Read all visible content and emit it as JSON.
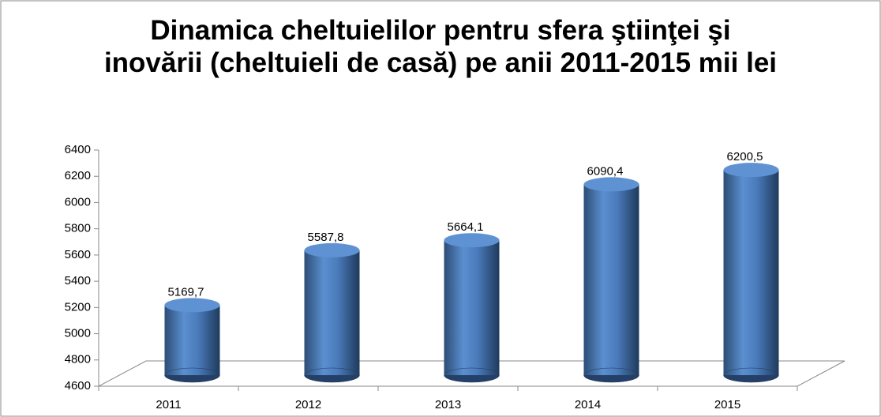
{
  "chart_data": {
    "type": "bar3d",
    "title": "Dinamica cheltuielilor pentru sfera ştiinţei şi inovării (cheltuieli de casă) pe anii 2011-2015 mii lei",
    "categories": [
      "2011",
      "2012",
      "2013",
      "2014",
      "2015"
    ],
    "values": [
      5169.7,
      5587.8,
      5664.1,
      6090.4,
      6200.5
    ],
    "value_labels": [
      "5169,7",
      "5587,8",
      "5664,1",
      "6090,4",
      "6200,5"
    ],
    "color": "#4f81bd",
    "ylim": [
      4600,
      6400
    ],
    "yticks": [
      4600,
      4800,
      5000,
      5200,
      5400,
      5600,
      5800,
      6000,
      6200,
      6400
    ]
  }
}
